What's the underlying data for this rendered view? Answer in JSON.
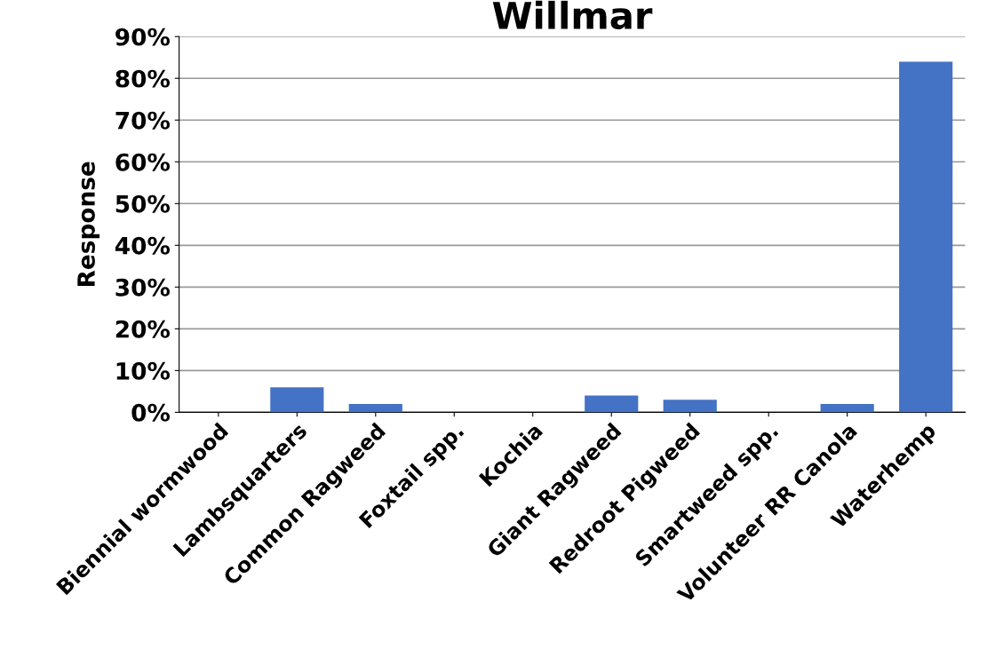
{
  "chart_data": {
    "type": "bar",
    "title": "Willmar",
    "ylabel": "Response",
    "categories": [
      "Biennial wormwood",
      "Lambsquarters",
      "Common Ragweed",
      "Foxtail spp.",
      "Kochia",
      "Giant Ragweed",
      "Redroot Pigweed",
      "Smartweed spp.",
      "Volunteer RR Canola",
      "Waterhemp"
    ],
    "values": [
      0,
      6,
      2,
      0,
      0,
      4,
      3,
      0,
      2,
      84
    ],
    "color": "#4472c4",
    "ylim": [
      0,
      90
    ],
    "yticks": [
      {
        "value": 0,
        "label": "0%"
      },
      {
        "value": 10,
        "label": "10%"
      },
      {
        "value": 20,
        "label": "20%"
      },
      {
        "value": 30,
        "label": "30%"
      },
      {
        "value": 40,
        "label": "40%"
      },
      {
        "value": 50,
        "label": "50%"
      },
      {
        "value": 60,
        "label": "60%"
      },
      {
        "value": 70,
        "label": "70%"
      },
      {
        "value": 80,
        "label": "80%"
      },
      {
        "value": 90,
        "label": "90%"
      }
    ],
    "grid": "y",
    "legend": false
  }
}
